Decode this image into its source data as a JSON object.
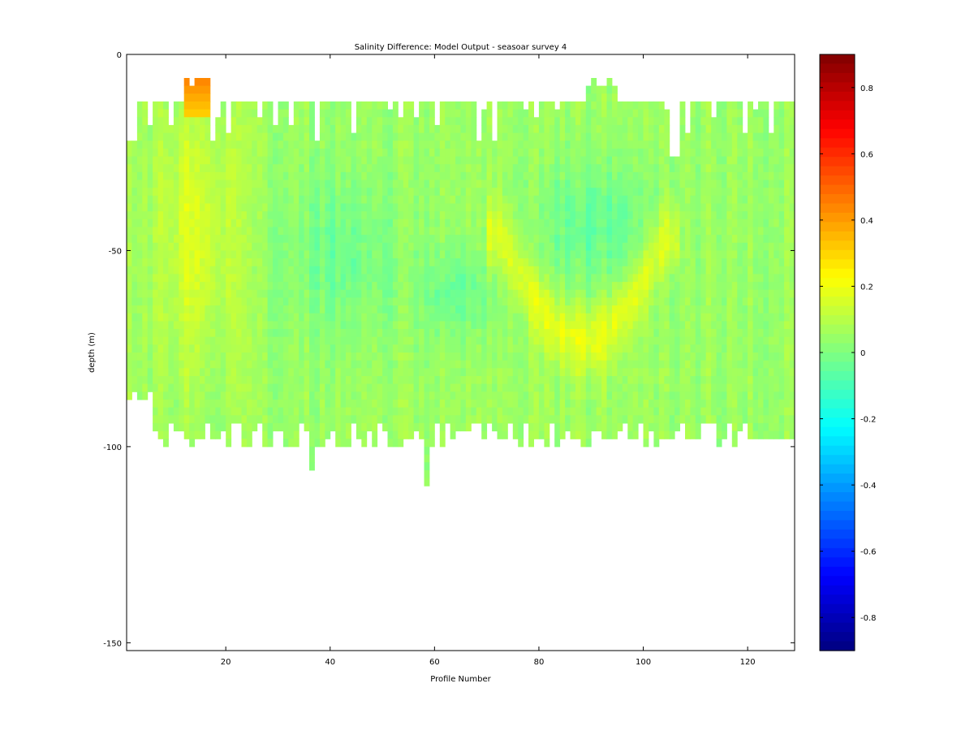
{
  "chart_data": {
    "type": "heatmap",
    "title": "Salinity Difference: Model Output - seasoar survey 4",
    "xlabel": "Profile Number",
    "ylabel": "depth (m)",
    "xlim": [
      1,
      129
    ],
    "ylim": [
      -152,
      0
    ],
    "x_ticks": [
      20,
      40,
      60,
      80,
      100,
      120
    ],
    "y_ticks": [
      0,
      -50,
      -100,
      -150
    ],
    "colorbar": {
      "colormap": "jet",
      "clim": [
        -0.9,
        0.9
      ],
      "ticks": [
        0.8,
        0.6,
        0.4,
        0.2,
        0,
        -0.2,
        -0.4,
        -0.6,
        -0.8
      ]
    },
    "data_extent": {
      "profiles": [
        1,
        129
      ],
      "top_depth_range": [
        -4,
        -27
      ],
      "bottom_depth_range": [
        -82,
        -110
      ]
    },
    "value_summary": {
      "typical_range": [
        -0.15,
        0.25
      ],
      "max_value": 0.45,
      "max_location": {
        "profile": 14,
        "depth": -8
      },
      "notable_features": [
        {
          "name": "high-difference patch",
          "profile_range": [
            12,
            17
          ],
          "depth_range": [
            -5,
            -15
          ],
          "value": 0.4
        },
        {
          "name": "positive arc",
          "profile_range": [
            72,
            104
          ],
          "depth_range": [
            -45,
            -72
          ],
          "value": 0.2
        },
        {
          "name": "negative core",
          "profile_range": [
            80,
            100
          ],
          "depth_range": [
            -30,
            -60
          ],
          "value": -0.1
        }
      ]
    }
  }
}
